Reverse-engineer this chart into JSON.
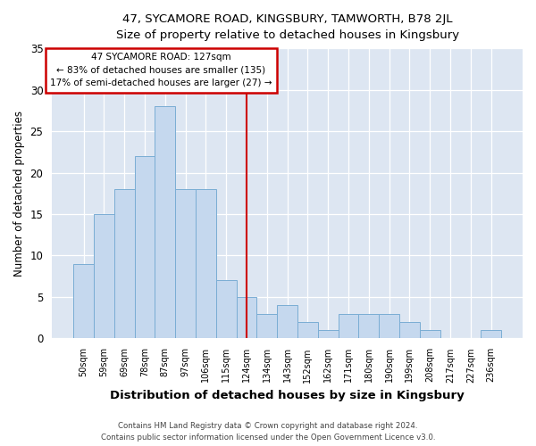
{
  "title": "47, SYCAMORE ROAD, KINGSBURY, TAMWORTH, B78 2JL",
  "subtitle": "Size of property relative to detached houses in Kingsbury",
  "xlabel": "Distribution of detached houses by size in Kingsbury",
  "ylabel": "Number of detached properties",
  "bar_labels": [
    "50sqm",
    "59sqm",
    "69sqm",
    "78sqm",
    "87sqm",
    "97sqm",
    "106sqm",
    "115sqm",
    "124sqm",
    "134sqm",
    "143sqm",
    "152sqm",
    "162sqm",
    "171sqm",
    "180sqm",
    "190sqm",
    "199sqm",
    "208sqm",
    "217sqm",
    "227sqm",
    "236sqm"
  ],
  "bar_values": [
    9,
    15,
    18,
    22,
    28,
    18,
    18,
    7,
    5,
    3,
    4,
    2,
    1,
    3,
    3,
    3,
    2,
    1,
    0,
    0,
    1
  ],
  "bar_color": "#c5d8ee",
  "bar_edge_color": "#7aadd4",
  "ref_line_x": 8.0,
  "annotation_line1": "47 SYCAMORE ROAD: 127sqm",
  "annotation_line2": "← 83% of detached houses are smaller (135)",
  "annotation_line3": "17% of semi-detached houses are larger (27) →",
  "annotation_box_color": "#ffffff",
  "annotation_box_edge": "#cc0000",
  "ref_line_color": "#cc0000",
  "background_color": "#dde6f2",
  "ylim": [
    0,
    35
  ],
  "yticks": [
    0,
    5,
    10,
    15,
    20,
    25,
    30,
    35
  ],
  "footer_line1": "Contains HM Land Registry data © Crown copyright and database right 2024.",
  "footer_line2": "Contains public sector information licensed under the Open Government Licence v3.0."
}
